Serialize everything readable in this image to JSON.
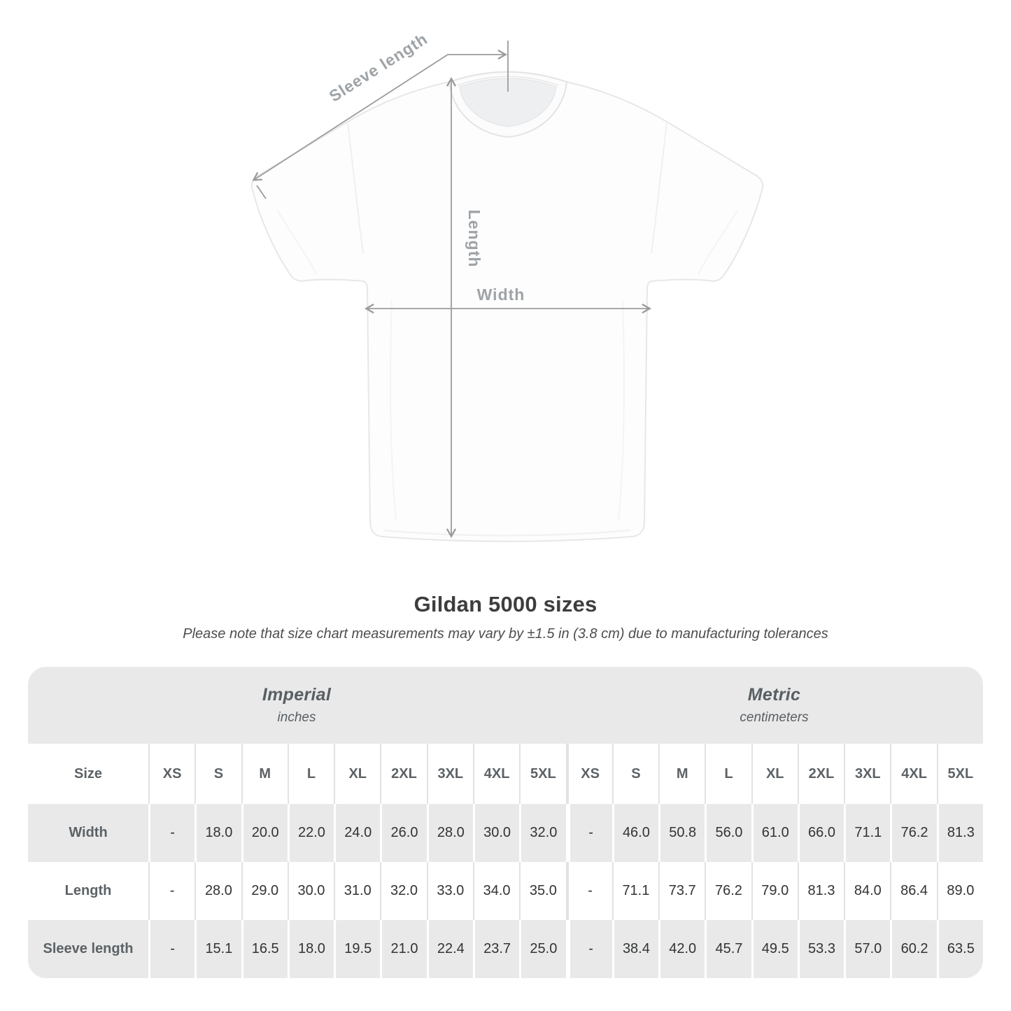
{
  "diagram": {
    "labels": {
      "sleeve_length": "Sleeve length",
      "length": "Length",
      "width": "Width"
    }
  },
  "heading": {
    "title": "Gildan 5000 sizes",
    "note": "Please note that size chart measurements may vary by ±1.5 in (3.8 cm) due to manufacturing tolerances"
  },
  "chart_data": {
    "type": "table",
    "title": "Gildan 5000 sizes",
    "note": "Please note that size chart measurements may vary by ±1.5 in (3.8 cm) due to manufacturing tolerances",
    "size_header": "Size",
    "columns": [
      "XS",
      "S",
      "M",
      "L",
      "XL",
      "2XL",
      "3XL",
      "4XL",
      "5XL"
    ],
    "unit_groups": [
      {
        "label": "Imperial",
        "unit": "inches"
      },
      {
        "label": "Metric",
        "unit": "centimeters"
      }
    ],
    "rows": [
      {
        "label": "Width",
        "imperial": [
          "-",
          "18.0",
          "20.0",
          "22.0",
          "24.0",
          "26.0",
          "28.0",
          "30.0",
          "32.0"
        ],
        "metric": [
          "-",
          "46.0",
          "50.8",
          "56.0",
          "61.0",
          "66.0",
          "71.1",
          "76.2",
          "81.3"
        ]
      },
      {
        "label": "Length",
        "imperial": [
          "-",
          "28.0",
          "29.0",
          "30.0",
          "31.0",
          "32.0",
          "33.0",
          "34.0",
          "35.0"
        ],
        "metric": [
          "-",
          "71.1",
          "73.7",
          "76.2",
          "79.0",
          "81.3",
          "84.0",
          "86.4",
          "89.0"
        ]
      },
      {
        "label": "Sleeve length",
        "imperial": [
          "-",
          "15.1",
          "16.5",
          "18.0",
          "19.5",
          "21.0",
          "22.4",
          "23.7",
          "25.0"
        ],
        "metric": [
          "-",
          "38.4",
          "42.0",
          "45.7",
          "49.5",
          "53.3",
          "57.0",
          "60.2",
          "63.5"
        ]
      }
    ],
    "colors": {
      "table_band": "#e9e9e9",
      "stripe_gray": "#e9e9e9",
      "header_text": "#585f63",
      "value_text": "#313335",
      "dimension_gray": "#9b9b9b"
    }
  }
}
